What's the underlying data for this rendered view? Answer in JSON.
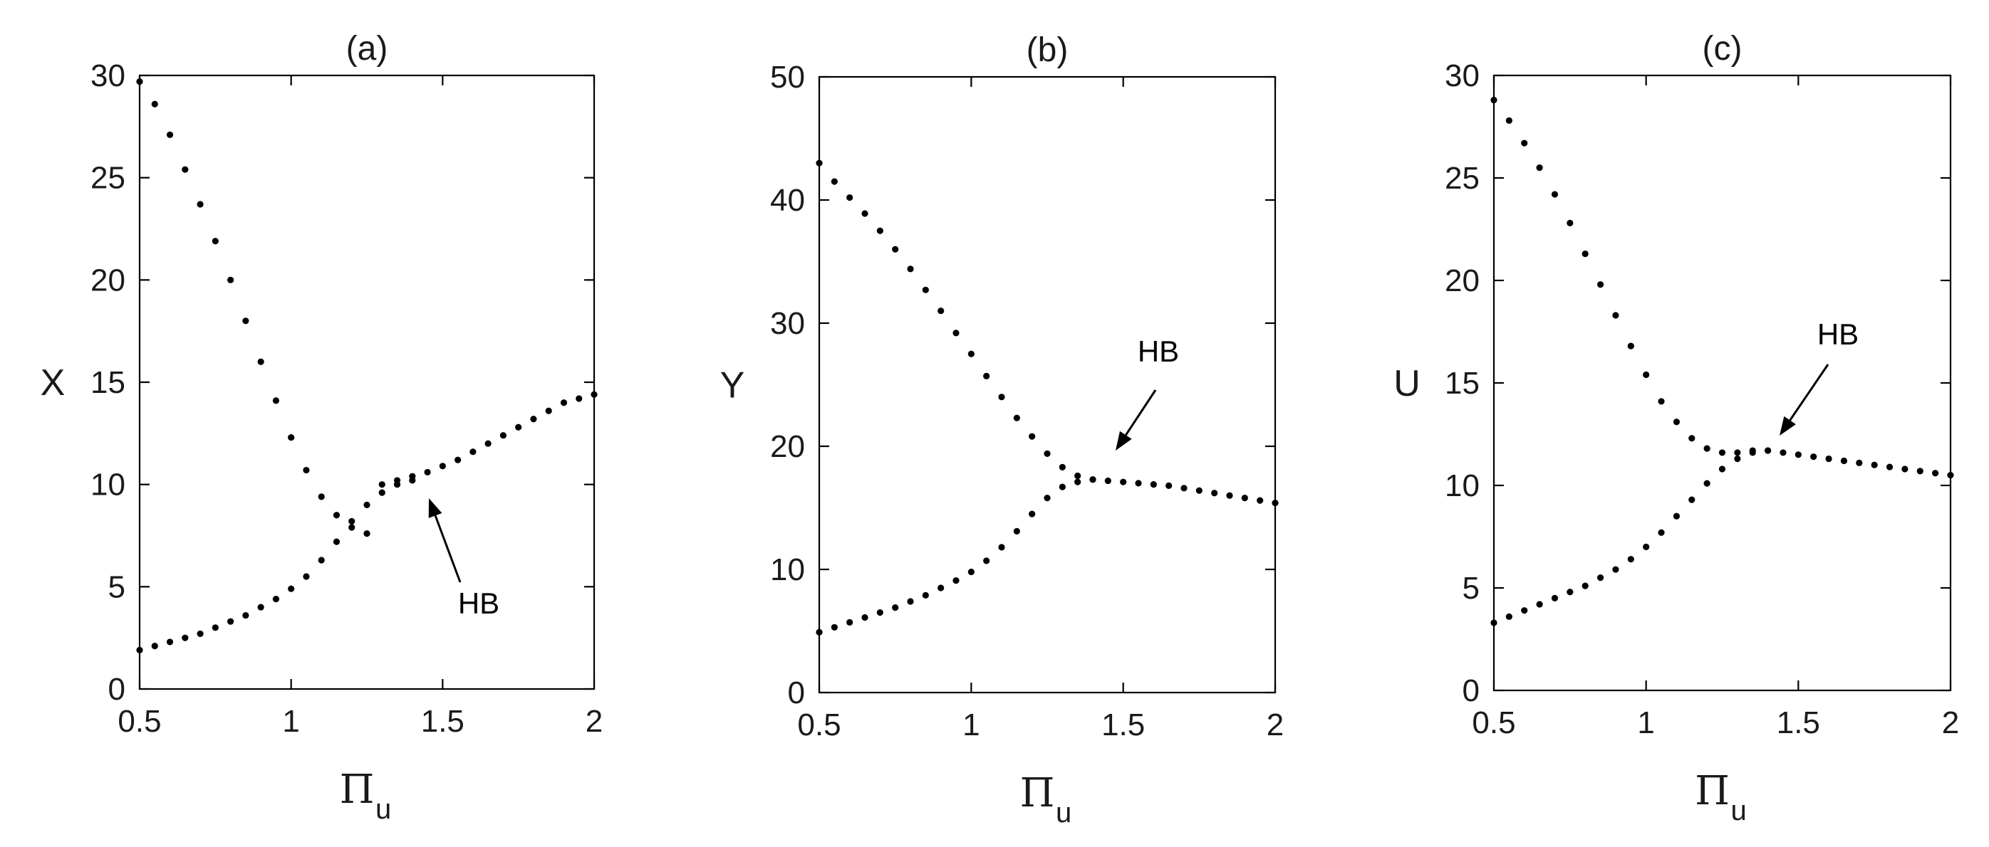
{
  "chart_data": [
    {
      "type": "scatter",
      "title": "(a)",
      "xlabel": "Π",
      "xlabel_subscript": "u",
      "ylabel": "X",
      "xlim": [
        0.5,
        2
      ],
      "ylim": [
        0,
        30
      ],
      "xticks": [
        "0.5",
        "1",
        "1.5",
        "2"
      ],
      "yticks": [
        "0",
        "5",
        "10",
        "15",
        "20",
        "25",
        "30"
      ],
      "grid": false,
      "series": [
        {
          "x": [
            0.5,
            0.55,
            0.6,
            0.65,
            0.7,
            0.75,
            0.8,
            0.85,
            0.9,
            0.95,
            1.0,
            1.05,
            1.1,
            1.15,
            1.2,
            1.25,
            1.3,
            1.35,
            1.4,
            1.45,
            1.5,
            1.55,
            1.6,
            1.65,
            1.7,
            1.75,
            1.8,
            1.85,
            1.9,
            1.95,
            2.0
          ],
          "y": [
            29.7,
            28.6,
            27.1,
            25.4,
            23.7,
            21.9,
            20.0,
            18.0,
            16.0,
            14.1,
            12.3,
            10.7,
            9.4,
            8.5,
            7.9,
            7.6,
            10.0,
            10.2,
            10.4,
            10.6,
            10.9,
            11.2,
            11.6,
            12.0,
            12.4,
            12.8,
            13.2,
            13.6,
            14.0,
            14.2,
            14.4
          ]
        },
        {
          "x": [
            0.5,
            0.55,
            0.6,
            0.65,
            0.7,
            0.75,
            0.8,
            0.85,
            0.9,
            0.95,
            1.0,
            1.05,
            1.1,
            1.15,
            1.2,
            1.25,
            1.3,
            1.35,
            1.4
          ],
          "y": [
            1.9,
            2.1,
            2.3,
            2.5,
            2.7,
            3.0,
            3.3,
            3.6,
            4.0,
            4.4,
            4.9,
            5.5,
            6.3,
            7.2,
            8.2,
            9.0,
            9.6,
            10.0,
            10.2
          ]
        }
      ],
      "annotations": [
        {
          "text": "HB",
          "x": 1.42,
          "y": 10.3
        }
      ]
    },
    {
      "type": "scatter",
      "title": "(b)",
      "xlabel": "Π",
      "xlabel_subscript": "u",
      "ylabel": "Y",
      "xlim": [
        0.5,
        2
      ],
      "ylim": [
        0,
        50
      ],
      "xticks": [
        "0.5",
        "1",
        "1.5",
        "2"
      ],
      "yticks": [
        "0",
        "10",
        "20",
        "30",
        "40",
        "50"
      ],
      "grid": false,
      "series": [
        {
          "x": [
            0.5,
            0.55,
            0.6,
            0.65,
            0.7,
            0.75,
            0.8,
            0.85,
            0.9,
            0.95,
            1.0,
            1.05,
            1.1,
            1.15,
            1.2,
            1.25,
            1.3,
            1.35,
            1.4,
            1.45,
            1.5,
            1.55,
            1.6,
            1.65,
            1.7,
            1.75,
            1.8,
            1.85,
            1.9,
            1.95,
            2.0
          ],
          "y": [
            43.0,
            41.5,
            40.2,
            38.9,
            37.5,
            36.0,
            34.4,
            32.7,
            31.0,
            29.2,
            27.5,
            25.7,
            24.0,
            22.3,
            20.8,
            19.4,
            18.3,
            17.6,
            17.3,
            17.2,
            17.1,
            17.0,
            16.9,
            16.8,
            16.6,
            16.4,
            16.2,
            16.0,
            15.8,
            15.6,
            15.4
          ]
        },
        {
          "x": [
            0.5,
            0.55,
            0.6,
            0.65,
            0.7,
            0.75,
            0.8,
            0.85,
            0.9,
            0.95,
            1.0,
            1.05,
            1.1,
            1.15,
            1.2,
            1.25,
            1.3,
            1.35,
            1.4
          ],
          "y": [
            4.9,
            5.3,
            5.7,
            6.1,
            6.5,
            6.9,
            7.4,
            7.9,
            8.5,
            9.1,
            9.8,
            10.7,
            11.8,
            13.1,
            14.5,
            15.8,
            16.7,
            17.1,
            17.3
          ]
        }
      ],
      "annotations": [
        {
          "text": "HB",
          "x": 1.45,
          "y": 19.0
        }
      ]
    },
    {
      "type": "scatter",
      "title": "(c)",
      "xlabel": "Π",
      "xlabel_subscript": "u",
      "ylabel": "U",
      "xlim": [
        0.5,
        2
      ],
      "ylim": [
        0,
        30
      ],
      "xticks": [
        "0.5",
        "1",
        "1.5",
        "2"
      ],
      "yticks": [
        "0",
        "5",
        "10",
        "15",
        "20",
        "25",
        "30"
      ],
      "grid": false,
      "series": [
        {
          "x": [
            0.5,
            0.55,
            0.6,
            0.65,
            0.7,
            0.75,
            0.8,
            0.85,
            0.9,
            0.95,
            1.0,
            1.05,
            1.1,
            1.15,
            1.2,
            1.25,
            1.3,
            1.35,
            1.4,
            1.45,
            1.5,
            1.55,
            1.6,
            1.65,
            1.7,
            1.75,
            1.8,
            1.85,
            1.9,
            1.95,
            2.0
          ],
          "y": [
            28.8,
            27.8,
            26.7,
            25.5,
            24.2,
            22.8,
            21.3,
            19.8,
            18.3,
            16.8,
            15.4,
            14.1,
            13.1,
            12.3,
            11.8,
            11.6,
            11.6,
            11.7,
            11.7,
            11.6,
            11.5,
            11.4,
            11.3,
            11.2,
            11.1,
            11.0,
            10.9,
            10.8,
            10.7,
            10.6,
            10.5
          ]
        },
        {
          "x": [
            0.5,
            0.55,
            0.6,
            0.65,
            0.7,
            0.75,
            0.8,
            0.85,
            0.9,
            0.95,
            1.0,
            1.05,
            1.1,
            1.15,
            1.2,
            1.25,
            1.3,
            1.35,
            1.4
          ],
          "y": [
            3.3,
            3.6,
            3.9,
            4.2,
            4.5,
            4.8,
            5.1,
            5.5,
            5.9,
            6.4,
            7.0,
            7.7,
            8.5,
            9.3,
            10.1,
            10.8,
            11.3,
            11.6,
            11.7
          ]
        }
      ],
      "annotations": [
        {
          "text": "HB",
          "x": 1.42,
          "y": 12.0
        }
      ]
    }
  ]
}
